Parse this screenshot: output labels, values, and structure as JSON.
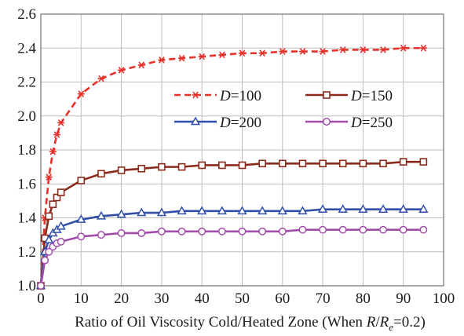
{
  "chart_data": {
    "type": "line",
    "xlabel_parts": [
      "Ratio of Oil Viscosity Cold/Heated Zone (When ",
      "R",
      "/",
      "R",
      "e",
      "=0.2)"
    ],
    "xlim": [
      0,
      100
    ],
    "ylim": [
      1.0,
      2.6
    ],
    "xticks": [
      "0",
      "10",
      "20",
      "30",
      "40",
      "50",
      "60",
      "70",
      "80",
      "90",
      "100"
    ],
    "yticks": [
      "1.0",
      "1.2",
      "1.4",
      "1.6",
      "1.8",
      "2.0",
      "2.2",
      "2.4",
      "2.6"
    ],
    "grid": true,
    "legend": "center-right",
    "x": [
      0,
      1,
      2,
      3,
      4,
      5,
      10,
      15,
      20,
      25,
      30,
      35,
      40,
      45,
      50,
      55,
      60,
      65,
      70,
      75,
      80,
      85,
      90,
      95
    ],
    "series": [
      {
        "name": "D=100",
        "name_var": "D",
        "name_val": "=100",
        "color": "#e8312b",
        "marker": "star",
        "dash": "8,5",
        "values": [
          1.0,
          1.4,
          1.64,
          1.79,
          1.89,
          1.96,
          2.13,
          2.22,
          2.27,
          2.3,
          2.33,
          2.34,
          2.35,
          2.36,
          2.37,
          2.37,
          2.38,
          2.38,
          2.38,
          2.39,
          2.39,
          2.39,
          2.4,
          2.4
        ]
      },
      {
        "name": "D=150",
        "name_var": "D",
        "name_val": "=150",
        "color": "#8b2a1a",
        "marker": "square",
        "dash": "",
        "values": [
          1.0,
          1.28,
          1.41,
          1.48,
          1.52,
          1.55,
          1.62,
          1.66,
          1.68,
          1.69,
          1.7,
          1.7,
          1.71,
          1.71,
          1.71,
          1.72,
          1.72,
          1.72,
          1.72,
          1.72,
          1.72,
          1.72,
          1.73,
          1.73
        ]
      },
      {
        "name": "D=200",
        "name_var": "D",
        "name_val": "=200",
        "color": "#2f4fa8",
        "marker": "triangle",
        "dash": "",
        "values": [
          1.0,
          1.2,
          1.27,
          1.31,
          1.33,
          1.35,
          1.39,
          1.41,
          1.42,
          1.43,
          1.43,
          1.44,
          1.44,
          1.44,
          1.44,
          1.44,
          1.44,
          1.44,
          1.45,
          1.45,
          1.45,
          1.45,
          1.45,
          1.45
        ]
      },
      {
        "name": "D=250",
        "name_var": "D",
        "name_val": "=250",
        "color": "#a04ca8",
        "marker": "circle",
        "dash": "",
        "values": [
          1.0,
          1.15,
          1.2,
          1.23,
          1.25,
          1.26,
          1.29,
          1.3,
          1.31,
          1.31,
          1.32,
          1.32,
          1.32,
          1.32,
          1.32,
          1.32,
          1.32,
          1.33,
          1.33,
          1.33,
          1.33,
          1.33,
          1.33,
          1.33
        ]
      }
    ]
  }
}
